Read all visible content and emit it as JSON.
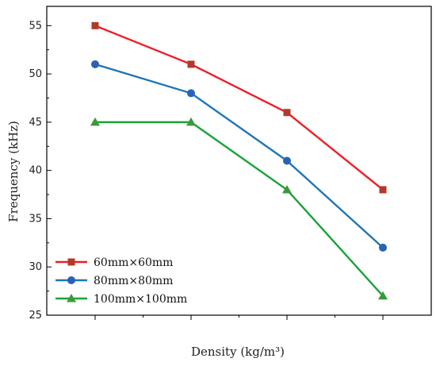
{
  "chart_data": {
    "type": "line",
    "title": "",
    "xlabel": "Density (kg/m³)",
    "ylabel": "Frequency (kHz)",
    "ylim": [
      25,
      57
    ],
    "yticks": [
      25,
      30,
      35,
      40,
      45,
      50,
      55
    ],
    "x_positions": 4,
    "x_tick_labels": [],
    "grid": false,
    "legend_position": "bottom-left",
    "series": [
      {
        "name": "60mm×60mm",
        "marker": "square",
        "color": "#ee1c25",
        "marker_color": "#b23a2a",
        "values": [
          55,
          51,
          46,
          38
        ]
      },
      {
        "name": "80mm×80mm",
        "marker": "circle",
        "color": "#1f77b4",
        "marker_color": "#2a62b8",
        "values": [
          51,
          48,
          41,
          32
        ]
      },
      {
        "name": "100mm×100mm",
        "marker": "triangle",
        "color": "#1aa33a",
        "marker_color": "#3a9a3a",
        "values": [
          45,
          45,
          38,
          27
        ]
      }
    ]
  }
}
